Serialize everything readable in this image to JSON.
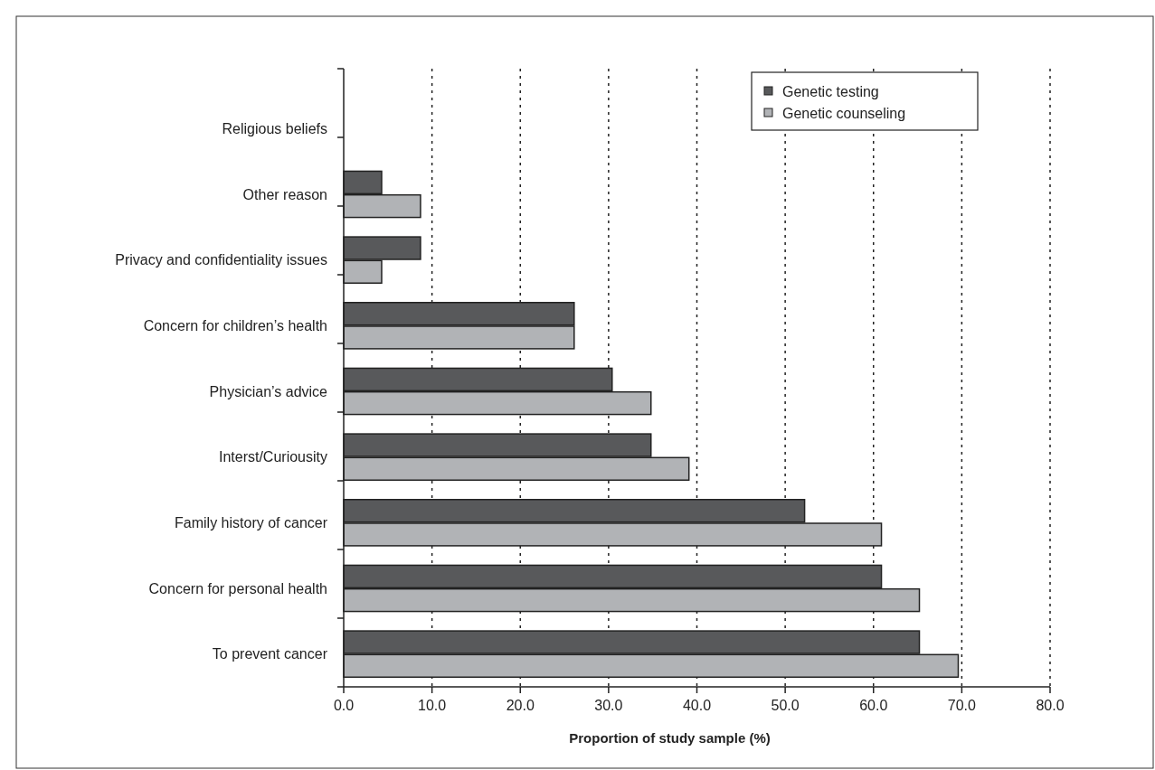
{
  "chart_data": {
    "type": "bar",
    "orientation": "horizontal",
    "xlabel": "Proportion of study sample (%)",
    "categories": [
      "Religious beliefs",
      "Other reason",
      "Privacy and confidentiality issues",
      "Concern for children’s health",
      "Physician’s advice",
      "Interst/Curiousity",
      "Family history of cancer",
      "Concern for personal health",
      "To prevent cancer"
    ],
    "series": [
      {
        "name": "Genetic testing",
        "color": "#58595b",
        "values": [
          0,
          4.3,
          8.7,
          26.1,
          30.4,
          34.8,
          52.2,
          60.9,
          65.2
        ]
      },
      {
        "name": "Genetic counseling",
        "color": "#b1b3b6",
        "values": [
          0,
          8.7,
          4.3,
          26.1,
          34.8,
          39.1,
          60.9,
          65.2,
          69.6
        ]
      }
    ],
    "xlim": [
      0,
      80
    ],
    "xticks": [
      {
        "value": 0,
        "label": "0.0"
      },
      {
        "value": 10,
        "label": "10.0"
      },
      {
        "value": 20,
        "label": "20.0"
      },
      {
        "value": 30,
        "label": "30.0"
      },
      {
        "value": 40,
        "label": "40.0"
      },
      {
        "value": 50,
        "label": "50.0"
      },
      {
        "value": 60,
        "label": "60.0"
      },
      {
        "value": 70,
        "label": "70.0"
      },
      {
        "value": 80,
        "label": "80.0"
      }
    ],
    "grid": "x",
    "legend": "top right"
  }
}
